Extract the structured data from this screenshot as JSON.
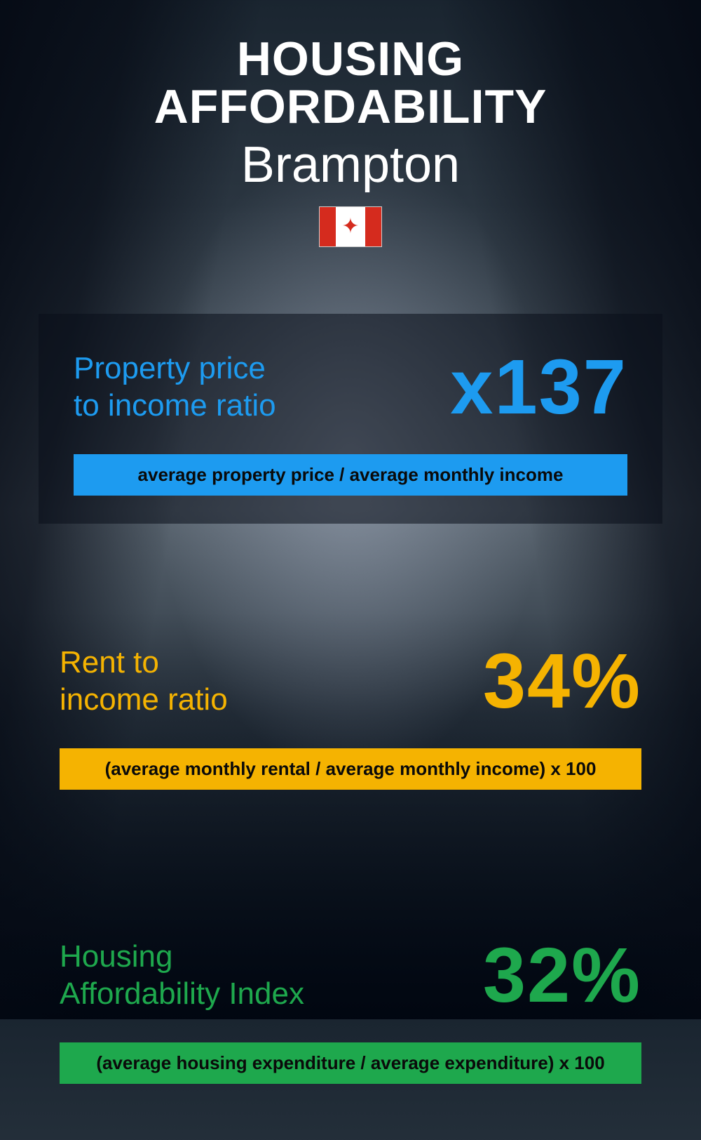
{
  "header": {
    "title": "HOUSING AFFORDABILITY",
    "subtitle": "Brampton",
    "flag_country": "Canada"
  },
  "metrics": [
    {
      "label": "Property price\nto income ratio",
      "value": "x137",
      "formula": "average property price / average monthly income",
      "color": "#1d9bf0",
      "label_fontsize": 44,
      "value_fontsize": 110
    },
    {
      "label": "Rent to\nincome ratio",
      "value": "34%",
      "formula": "(average monthly rental / average monthly income) x 100",
      "color": "#f5b301",
      "label_fontsize": 44,
      "value_fontsize": 110
    },
    {
      "label": "Housing\nAffordability Index",
      "value": "32%",
      "formula": "(average housing expenditure / average expenditure) x 100",
      "color": "#1ea84d",
      "label_fontsize": 44,
      "value_fontsize": 110
    }
  ],
  "style": {
    "background_gradient": [
      "#1a2530",
      "#2a3540",
      "#4a5560",
      "#0a1520"
    ],
    "title_color": "#ffffff",
    "title_fontsize": 68,
    "subtitle_fontsize": 72,
    "formula_text_color": "#0a0a0a",
    "formula_fontsize": 26,
    "card_bg": "rgba(10,15,25,0.55)"
  }
}
